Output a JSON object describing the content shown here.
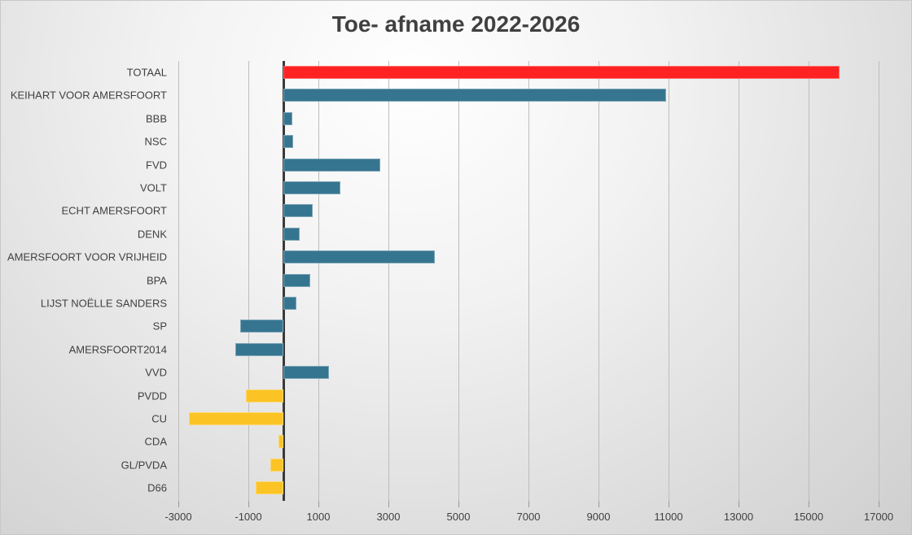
{
  "chart_data": {
    "type": "bar",
    "orientation": "horizontal",
    "title": "Toe- afname 2022-2026",
    "xlabel": "",
    "ylabel": "",
    "xlim": [
      -3000,
      17000
    ],
    "x_ticks": [
      "-3000",
      "-1000",
      "1000",
      "3000",
      "5000",
      "7000",
      "9000",
      "11000",
      "13000",
      "15000",
      "17000"
    ],
    "grid": true,
    "legend": null,
    "categories": [
      "TOTAAL",
      "KEIHART VOOR AMERSFOORT",
      "BBB",
      "NSC",
      "FVD",
      "VOLT",
      "ECHT AMERSFOORT",
      "DENK",
      "AMERSFOORT VOOR VRIJHEID",
      "BPA",
      "LIJST NOËLLE SANDERS",
      "SP",
      "AMERSFOORT2014",
      "VVD",
      "PVDD",
      "CU",
      "CDA",
      "GL/PVDA",
      "D66"
    ],
    "values": [
      15880,
      10930,
      255,
      280,
      2770,
      1630,
      840,
      465,
      4330,
      770,
      370,
      -1230,
      -1370,
      1300,
      -1070,
      -2700,
      -140,
      -370,
      -790
    ],
    "colors": [
      "#ff2222",
      "#36758f",
      "#36758f",
      "#36758f",
      "#36758f",
      "#36758f",
      "#36758f",
      "#36758f",
      "#36758f",
      "#36758f",
      "#36758f",
      "#36758f",
      "#36758f",
      "#36758f",
      "#fbc424",
      "#fbc424",
      "#fbc424",
      "#fbc424",
      "#fbc424"
    ]
  },
  "palette": {
    "total": "#ff2222",
    "group_a": "#36758f",
    "group_b": "#fbc424"
  }
}
